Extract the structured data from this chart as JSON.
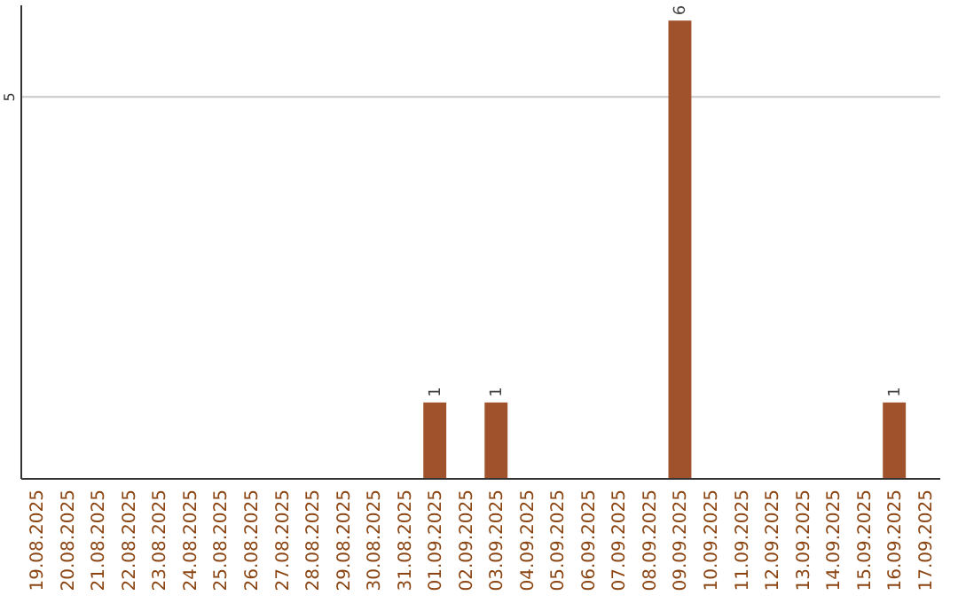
{
  "chart_data": {
    "type": "bar",
    "categories": [
      "19.08.2025",
      "20.08.2025",
      "21.08.2025",
      "22.08.2025",
      "23.08.2025",
      "24.08.2025",
      "25.08.2025",
      "26.08.2025",
      "27.08.2025",
      "28.08.2025",
      "29.08.2025",
      "30.08.2025",
      "31.08.2025",
      "01.09.2025",
      "02.09.2025",
      "03.09.2025",
      "04.09.2025",
      "05.09.2025",
      "06.09.2025",
      "07.09.2025",
      "08.09.2025",
      "09.09.2025",
      "10.09.2025",
      "11.09.2025",
      "12.09.2025",
      "13.09.2025",
      "14.09.2025",
      "15.09.2025",
      "16.09.2025",
      "17.09.2025"
    ],
    "values": [
      null,
      null,
      null,
      null,
      null,
      null,
      null,
      null,
      null,
      null,
      null,
      null,
      null,
      1,
      null,
      1,
      null,
      null,
      null,
      null,
      null,
      6,
      null,
      null,
      null,
      null,
      null,
      null,
      1,
      null
    ],
    "data_labels": true,
    "color": "#a0522d",
    "ylim": [
      0,
      6.2
    ],
    "ref_lines": [
      {
        "axis": "y",
        "value": 5,
        "label": "5",
        "color": "#c8c8c8"
      }
    ]
  }
}
